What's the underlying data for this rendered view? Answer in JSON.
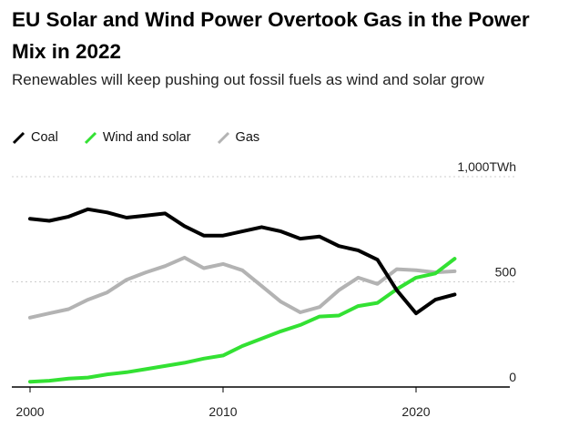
{
  "title": "EU Solar and Wind Power Overtook Gas in the Power Mix in 2022",
  "subtitle": "Renewables will keep pushing out fossil fuels as wind and solar grow",
  "colors": {
    "coal": "#000000",
    "wind_solar": "#33e133",
    "gas": "#b3b3b3",
    "grid": "#cccccc",
    "axis": "#000000"
  },
  "chart_data": {
    "type": "line",
    "title": "EU Solar and Wind Power Overtook Gas in the Power Mix in 2022",
    "subtitle": "Renewables will keep pushing out fossil fuels as wind and solar grow",
    "xlabel": "",
    "ylabel": "",
    "unit": "TWh",
    "xlim": [
      2000,
      2025
    ],
    "ylim": [
      0,
      1000
    ],
    "x_ticks": [
      "2000",
      "2010",
      "2020"
    ],
    "y_ticks": [
      "1,000TWh",
      "500",
      "0"
    ],
    "y_tick_values": [
      1000,
      500,
      0
    ],
    "grid": true,
    "legend_position": "top-left",
    "x": [
      2000,
      2001,
      2002,
      2003,
      2004,
      2005,
      2006,
      2007,
      2008,
      2009,
      2010,
      2011,
      2012,
      2013,
      2014,
      2015,
      2016,
      2017,
      2018,
      2019,
      2020,
      2021,
      2022
    ],
    "series": [
      {
        "name": "Coal",
        "color": "#000000",
        "values": [
          800,
          790,
          810,
          845,
          830,
          805,
          815,
          825,
          765,
          720,
          720,
          740,
          760,
          740,
          705,
          715,
          670,
          650,
          605,
          460,
          350,
          415,
          440
        ]
      },
      {
        "name": "Wind and solar",
        "color": "#33e133",
        "values": [
          25,
          30,
          40,
          45,
          60,
          70,
          85,
          100,
          115,
          135,
          150,
          195,
          230,
          265,
          295,
          335,
          340,
          385,
          400,
          465,
          520,
          540,
          610
        ]
      },
      {
        "name": "Gas",
        "color": "#b3b3b3",
        "values": [
          330,
          350,
          370,
          415,
          450,
          510,
          545,
          575,
          615,
          565,
          585,
          555,
          480,
          405,
          355,
          380,
          460,
          520,
          490,
          560,
          555,
          545,
          550
        ]
      }
    ]
  }
}
